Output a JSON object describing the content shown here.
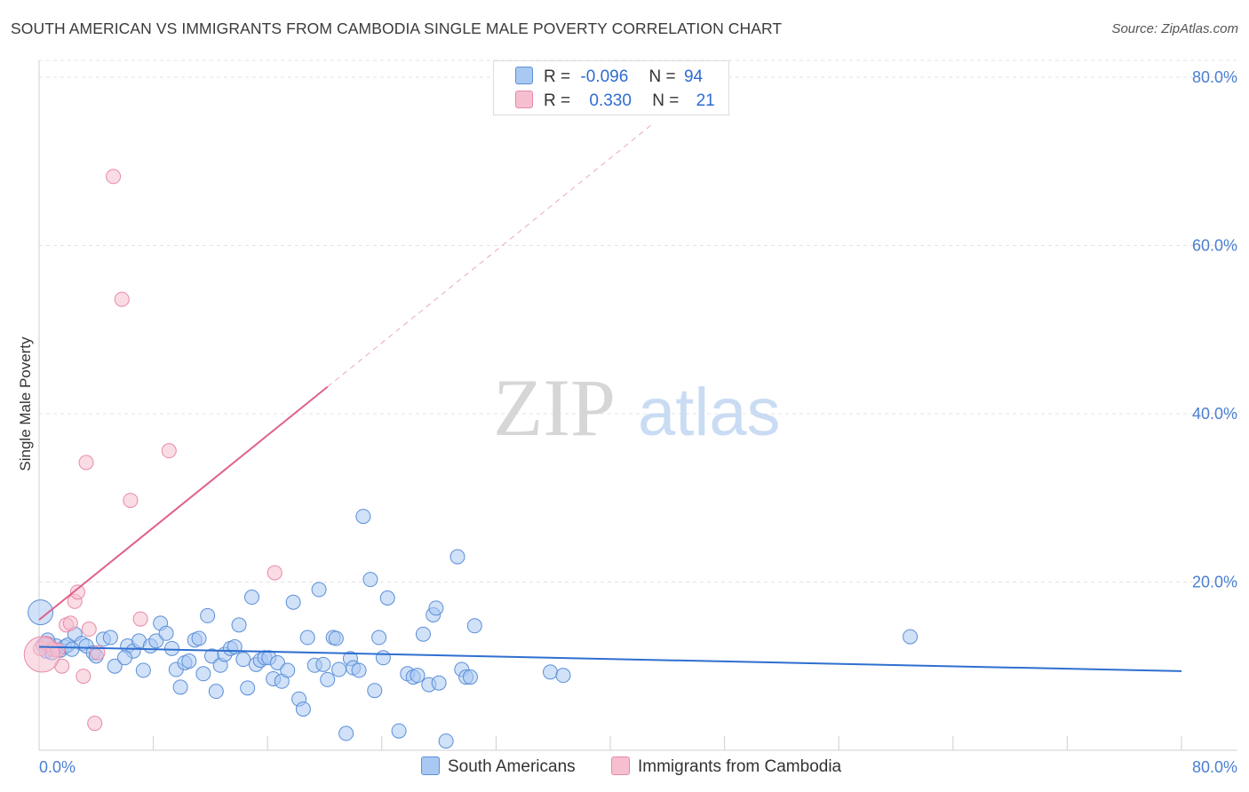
{
  "chart_data": {
    "type": "scatter",
    "title": "SOUTH AMERICAN VS IMMIGRANTS FROM CAMBODIA SINGLE MALE POVERTY CORRELATION CHART",
    "source": "Source: ZipAtlas.com",
    "xlabel": "",
    "ylabel": "Single Male Poverty",
    "xlim": [
      0,
      80
    ],
    "ylim": [
      0,
      82
    ],
    "y_ticks": [
      {
        "value": 20,
        "label": "20.0%"
      },
      {
        "value": 40,
        "label": "40.0%"
      },
      {
        "value": 60,
        "label": "60.0%"
      },
      {
        "value": 80,
        "label": "80.0%"
      }
    ],
    "x_tick_labels": {
      "min": "0.0%",
      "max": "80.0%"
    },
    "grid": true,
    "watermark": {
      "zip": "ZIP",
      "atlas": "atlas"
    },
    "colors": {
      "south_american_fill": "#a9c8f2",
      "south_american_stroke": "#5b8fd8",
      "south_american_line": "#2f6fd0",
      "cambodia_fill": "#f6bfd0",
      "cambodia_stroke": "#e98aa8",
      "cambodia_line": "#e0608a",
      "tick_text": "#4a7fd0"
    },
    "legend_top": {
      "rows": [
        {
          "r_label": "R =",
          "r_value": "-0.096",
          "n_label": "N =",
          "n_value": "94"
        },
        {
          "r_label": "R =",
          "r_value": "0.330",
          "n_label": "N =",
          "n_value": "21"
        }
      ]
    },
    "series": [
      {
        "name": "South Americans",
        "trend": {
          "x0": 0,
          "y0": 12.3,
          "x1": 80,
          "y1": 9.4
        },
        "points": [
          [
            0.1,
            16.4
          ],
          [
            0.3,
            12.5
          ],
          [
            0.5,
            11.8
          ],
          [
            0.7,
            12.6
          ],
          [
            0.9,
            11.6
          ],
          [
            1.2,
            12.4
          ],
          [
            1.5,
            11.9
          ],
          [
            1.8,
            12.3
          ],
          [
            2.0,
            12.5
          ],
          [
            2.5,
            13.8
          ],
          [
            3.0,
            12.7
          ],
          [
            3.3,
            12.4
          ],
          [
            3.8,
            11.6
          ],
          [
            4.0,
            11.2
          ],
          [
            4.5,
            13.2
          ],
          [
            5.0,
            13.4
          ],
          [
            5.3,
            10.0
          ],
          [
            6.2,
            12.4
          ],
          [
            6.6,
            11.8
          ],
          [
            7.0,
            13.0
          ],
          [
            7.3,
            9.5
          ],
          [
            7.8,
            12.4
          ],
          [
            8.2,
            13.0
          ],
          [
            8.5,
            15.1
          ],
          [
            8.9,
            13.9
          ],
          [
            9.3,
            12.1
          ],
          [
            9.6,
            9.6
          ],
          [
            9.9,
            7.5
          ],
          [
            10.2,
            10.4
          ],
          [
            10.5,
            10.6
          ],
          [
            10.9,
            13.1
          ],
          [
            11.2,
            13.3
          ],
          [
            11.5,
            9.1
          ],
          [
            11.8,
            16.0
          ],
          [
            12.1,
            11.2
          ],
          [
            12.4,
            7.0
          ],
          [
            12.7,
            10.1
          ],
          [
            13.0,
            11.4
          ],
          [
            13.4,
            12.1
          ],
          [
            13.7,
            12.3
          ],
          [
            14.0,
            14.9
          ],
          [
            14.3,
            10.8
          ],
          [
            14.6,
            7.4
          ],
          [
            14.9,
            18.2
          ],
          [
            15.2,
            10.2
          ],
          [
            15.5,
            10.7
          ],
          [
            15.8,
            11.0
          ],
          [
            16.1,
            11.0
          ],
          [
            16.4,
            8.5
          ],
          [
            16.7,
            10.4
          ],
          [
            17.0,
            8.2
          ],
          [
            17.4,
            9.5
          ],
          [
            17.8,
            17.6
          ],
          [
            18.2,
            6.1
          ],
          [
            18.5,
            4.9
          ],
          [
            18.8,
            13.4
          ],
          [
            19.3,
            10.1
          ],
          [
            19.6,
            19.1
          ],
          [
            19.9,
            10.2
          ],
          [
            20.2,
            8.4
          ],
          [
            20.6,
            13.4
          ],
          [
            21.0,
            9.6
          ],
          [
            21.5,
            2.0
          ],
          [
            21.8,
            10.9
          ],
          [
            22.0,
            9.8
          ],
          [
            22.4,
            9.5
          ],
          [
            22.7,
            27.8
          ],
          [
            23.2,
            20.3
          ],
          [
            23.5,
            7.1
          ],
          [
            23.8,
            13.4
          ],
          [
            24.1,
            11.0
          ],
          [
            24.4,
            18.1
          ],
          [
            25.2,
            2.3
          ],
          [
            25.8,
            9.1
          ],
          [
            26.2,
            8.7
          ],
          [
            26.5,
            8.9
          ],
          [
            26.9,
            13.8
          ],
          [
            27.3,
            7.8
          ],
          [
            27.6,
            16.1
          ],
          [
            27.8,
            16.9
          ],
          [
            28.0,
            8.0
          ],
          [
            28.5,
            1.1
          ],
          [
            29.3,
            23.0
          ],
          [
            29.6,
            9.6
          ],
          [
            29.9,
            8.7
          ],
          [
            30.2,
            8.7
          ],
          [
            30.5,
            14.8
          ],
          [
            35.8,
            9.3
          ],
          [
            36.7,
            8.9
          ],
          [
            61.0,
            13.5
          ],
          [
            0.6,
            13.1
          ],
          [
            2.3,
            12.0
          ],
          [
            6.0,
            11.0
          ],
          [
            20.8,
            13.3
          ]
        ]
      },
      {
        "name": "Immigrants from Cambodia",
        "trend": {
          "x0": 0,
          "y0": 15.5,
          "x1": 20.2,
          "y1": 43.2
        },
        "trend_dashed": {
          "x0": 20.2,
          "y0": 43.2,
          "x1": 43.0,
          "y1": 74.5
        },
        "points": [
          [
            0.1,
            12.1
          ],
          [
            0.5,
            12.7
          ],
          [
            1.0,
            12.0
          ],
          [
            1.3,
            11.9
          ],
          [
            1.6,
            10.0
          ],
          [
            1.9,
            14.9
          ],
          [
            2.2,
            15.1
          ],
          [
            2.5,
            17.7
          ],
          [
            2.7,
            18.8
          ],
          [
            3.1,
            8.8
          ],
          [
            3.3,
            34.2
          ],
          [
            3.5,
            14.4
          ],
          [
            3.9,
            3.2
          ],
          [
            4.1,
            11.6
          ],
          [
            5.2,
            68.2
          ],
          [
            5.8,
            53.6
          ],
          [
            6.4,
            29.7
          ],
          [
            7.1,
            15.6
          ],
          [
            9.1,
            35.6
          ],
          [
            16.5,
            21.1
          ],
          [
            0.2,
            11.4
          ]
        ]
      }
    ]
  }
}
